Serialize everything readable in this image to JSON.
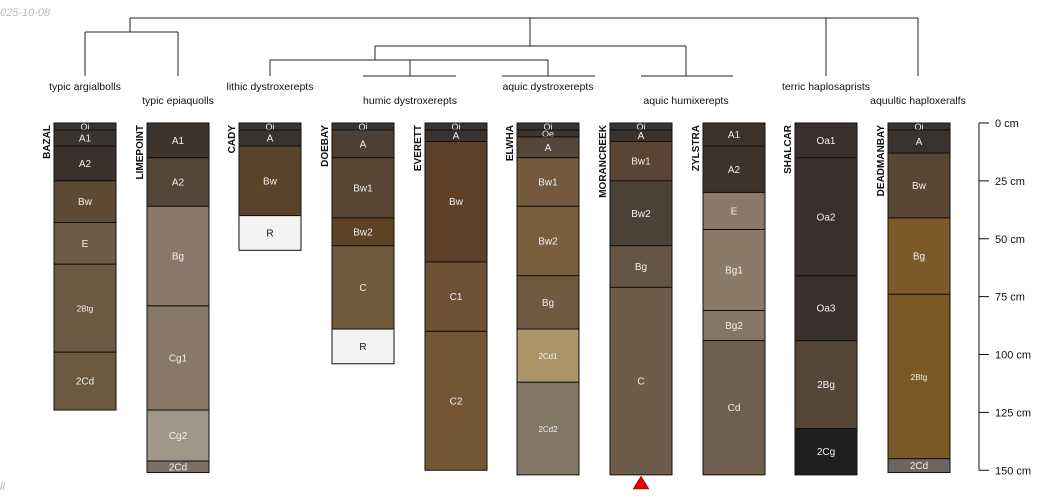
{
  "corner": {
    "date": "025-10-08",
    "note": "ll"
  },
  "axis": {
    "unit": "cm",
    "min": 0,
    "max": 150,
    "ticks": [
      0,
      25,
      50,
      75,
      100,
      125,
      150
    ]
  },
  "taxa": [
    "typic argialbolls",
    "typic epiaquolls",
    "lithic dystroxerepts",
    "humic dystroxerepts",
    "aquic dystroxerepts",
    "aquic humixerepts",
    "terric haplosaprists",
    "aquultic haploxeralfs"
  ],
  "profiles": [
    {
      "name": "BAZAL",
      "horizons": [
        {
          "label": "Oi",
          "top": 0,
          "bottom": 3,
          "color": "#3a3431"
        },
        {
          "label": "A1",
          "top": 3,
          "bottom": 10,
          "color": "#3b3330"
        },
        {
          "label": "A2",
          "top": 10,
          "bottom": 25,
          "color": "#3a312c"
        },
        {
          "label": "Bw",
          "top": 25,
          "bottom": 43,
          "color": "#5e4a34"
        },
        {
          "label": "E",
          "top": 43,
          "bottom": 61,
          "color": "#6e5c48"
        },
        {
          "label": "2Btg",
          "top": 61,
          "bottom": 99,
          "color": "#6c5a44"
        },
        {
          "label": "2Cd",
          "top": 99,
          "bottom": 124,
          "color": "#6c5a40"
        }
      ]
    },
    {
      "name": "LIMEPOINT",
      "horizons": [
        {
          "label": "A1",
          "top": 0,
          "bottom": 15,
          "color": "#3c3530"
        },
        {
          "label": "A2",
          "top": 15,
          "bottom": 36,
          "color": "#564638"
        },
        {
          "label": "Bg",
          "top": 36,
          "bottom": 79,
          "color": "#8b786a"
        },
        {
          "label": "Cg1",
          "top": 79,
          "bottom": 124,
          "color": "#887666"
        },
        {
          "label": "Cg2",
          "top": 124,
          "bottom": 146,
          "color": "#a09789"
        },
        {
          "label": "2Cd",
          "top": 146,
          "bottom": 151,
          "color": "#7c7066"
        }
      ]
    },
    {
      "name": "CADY",
      "horizons": [
        {
          "label": "Oi",
          "top": 0,
          "bottom": 3,
          "color": "#3a3431"
        },
        {
          "label": "A",
          "top": 3,
          "bottom": 10,
          "color": "#3a322d"
        },
        {
          "label": "Bw",
          "top": 10,
          "bottom": 40,
          "color": "#5a432b"
        },
        {
          "label": "R",
          "top": 40,
          "bottom": 55,
          "color": "#f3f3f3"
        }
      ]
    },
    {
      "name": "DOEBAY",
      "horizons": [
        {
          "label": "Oi",
          "top": 0,
          "bottom": 3,
          "color": "#3a3431"
        },
        {
          "label": "A",
          "top": 3,
          "bottom": 15,
          "color": "#4d3f33"
        },
        {
          "label": "Bw1",
          "top": 15,
          "bottom": 41,
          "color": "#5a4634"
        },
        {
          "label": "Bw2",
          "top": 41,
          "bottom": 53,
          "color": "#5e4224"
        },
        {
          "label": "C",
          "top": 53,
          "bottom": 89,
          "color": "#705a3c"
        },
        {
          "label": "R",
          "top": 89,
          "bottom": 104,
          "color": "#f3f3f3"
        }
      ]
    },
    {
      "name": "EVERETT",
      "horizons": [
        {
          "label": "Oi",
          "top": 0,
          "bottom": 3,
          "color": "#3a3431"
        },
        {
          "label": "A",
          "top": 3,
          "bottom": 8,
          "color": "#3a322d"
        },
        {
          "label": "Bw",
          "top": 8,
          "bottom": 60,
          "color": "#5e4028"
        },
        {
          "label": "C1",
          "top": 60,
          "bottom": 90,
          "color": "#6e5134"
        },
        {
          "label": "C2",
          "top": 90,
          "bottom": 150,
          "color": "#735634"
        }
      ]
    },
    {
      "name": "ELWHA",
      "horizons": [
        {
          "label": "Oi",
          "top": 0,
          "bottom": 3,
          "color": "#3a3431"
        },
        {
          "label": "Oe",
          "top": 3,
          "bottom": 6,
          "color": "#3b342f"
        },
        {
          "label": "A",
          "top": 6,
          "bottom": 15,
          "color": "#54463a"
        },
        {
          "label": "Bw1",
          "top": 15,
          "bottom": 36,
          "color": "#735a3c"
        },
        {
          "label": "Bw2",
          "top": 36,
          "bottom": 66,
          "color": "#7a5e3c"
        },
        {
          "label": "Bg",
          "top": 66,
          "bottom": 89,
          "color": "#6f5a40"
        },
        {
          "label": "2Cd1",
          "top": 89,
          "bottom": 112,
          "color": "#aa9468"
        },
        {
          "label": "2Cd2",
          "top": 112,
          "bottom": 152,
          "color": "#847664"
        }
      ]
    },
    {
      "name": "MORANCREEK",
      "horizons": [
        {
          "label": "Oi",
          "top": 0,
          "bottom": 3,
          "color": "#3a3431"
        },
        {
          "label": "A",
          "top": 3,
          "bottom": 8,
          "color": "#3a322d"
        },
        {
          "label": "Bw1",
          "top": 8,
          "bottom": 25,
          "color": "#5a4434"
        },
        {
          "label": "Bw2",
          "top": 25,
          "bottom": 53,
          "color": "#4e4236"
        },
        {
          "label": "Bg",
          "top": 53,
          "bottom": 71,
          "color": "#665444"
        },
        {
          "label": "C",
          "top": 71,
          "bottom": 152,
          "color": "#6e5c4a"
        }
      ]
    },
    {
      "name": "ZYLSTRA",
      "horizons": [
        {
          "label": "A1",
          "top": 0,
          "bottom": 10,
          "color": "#3e3128"
        },
        {
          "label": "A2",
          "top": 10,
          "bottom": 30,
          "color": "#3e3128"
        },
        {
          "label": "E",
          "top": 30,
          "bottom": 46,
          "color": "#8b7868"
        },
        {
          "label": "Bg1",
          "top": 46,
          "bottom": 81,
          "color": "#8b7a68"
        },
        {
          "label": "Bg2",
          "top": 81,
          "bottom": 94,
          "color": "#857565"
        },
        {
          "label": "Cd",
          "top": 94,
          "bottom": 152,
          "color": "#6e5f4e"
        }
      ]
    },
    {
      "name": "SHALCAR",
      "horizons": [
        {
          "label": "Oa1",
          "top": 0,
          "bottom": 15,
          "color": "#38302c"
        },
        {
          "label": "Oa2",
          "top": 15,
          "bottom": 66,
          "color": "#38302c"
        },
        {
          "label": "Oa3",
          "top": 66,
          "bottom": 94,
          "color": "#38302c"
        },
        {
          "label": "2Bg",
          "top": 94,
          "bottom": 132,
          "color": "#554637"
        },
        {
          "label": "2Cg",
          "top": 132,
          "bottom": 152,
          "color": "#1e1e1e"
        }
      ]
    },
    {
      "name": "DEADMANBAY",
      "horizons": [
        {
          "label": "Oi",
          "top": 0,
          "bottom": 3,
          "color": "#3a3431"
        },
        {
          "label": "A",
          "top": 3,
          "bottom": 13,
          "color": "#3a322d"
        },
        {
          "label": "Bw",
          "top": 13,
          "bottom": 41,
          "color": "#5a4634"
        },
        {
          "label": "Bg",
          "top": 41,
          "bottom": 74,
          "color": "#7e5a28"
        },
        {
          "label": "2Btg",
          "top": 74,
          "bottom": 145,
          "color": "#7c5824"
        },
        {
          "label": "2Cd",
          "top": 145,
          "bottom": 151,
          "color": "#6e6460"
        }
      ]
    }
  ]
}
